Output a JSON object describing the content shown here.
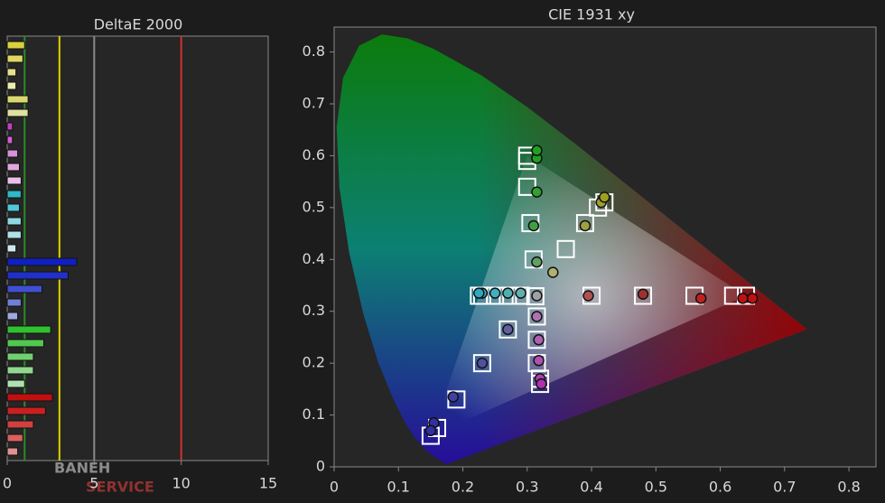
{
  "chart_data": [
    {
      "type": "hbar",
      "title": "DeltaE 2000",
      "categories": [
        null,
        null,
        null,
        null,
        null,
        null,
        null,
        null,
        null,
        null,
        null,
        null,
        null,
        null,
        null,
        null,
        null,
        null,
        null,
        null,
        null,
        null,
        null,
        null,
        null,
        null,
        null,
        null,
        null,
        null,
        null
      ],
      "values": [
        1.0,
        0.9,
        0.5,
        0.5,
        1.2,
        1.2,
        0.3,
        0.3,
        0.6,
        0.7,
        0.8,
        0.8,
        0.7,
        0.8,
        0.8,
        0.5,
        4.0,
        3.5,
        2.0,
        0.8,
        0.6,
        2.5,
        2.1,
        1.5,
        1.5,
        1.0,
        2.6,
        2.2,
        1.5,
        0.9,
        0.6
      ],
      "colors": [
        "#d8d040",
        "#e0d860",
        "#e8e090",
        "#ecebb0",
        "#d8d870",
        "#e0e0a0",
        "#c040c0",
        "#d060d0",
        "#d890d8",
        "#e0a8e0",
        "#e8c0e8",
        "#30b8c8",
        "#50c8d8",
        "#90d8e0",
        "#b0e0e8",
        "#d0e8f0",
        "#1020c0",
        "#2030c8",
        "#4050d0",
        "#7080d8",
        "#a0a8e0",
        "#30c030",
        "#50c850",
        "#70d070",
        "#90d890",
        "#b0e0b0",
        "#c01010",
        "#c82020",
        "#d04040",
        "#d86060",
        "#e09090"
      ],
      "xlim": [
        0,
        15
      ],
      "xticks": [
        0,
        5,
        10,
        15
      ],
      "reference_lines": [
        {
          "value": 1,
          "color": "#2a8a2a"
        },
        {
          "value": 3,
          "color": "#e0d000"
        },
        {
          "value": 5,
          "color": "#888888"
        },
        {
          "value": 10,
          "color": "#d03030"
        }
      ]
    },
    {
      "type": "chromaticity",
      "title": "CIE 1931 xy",
      "xlim": [
        0,
        0.842
      ],
      "ylim": [
        0,
        0.848
      ],
      "xticks": [
        0,
        0.1,
        0.2,
        0.3,
        0.4,
        0.5,
        0.6,
        0.7,
        0.8
      ],
      "yticks": [
        0,
        0.1,
        0.2,
        0.3,
        0.4,
        0.5,
        0.6,
        0.7,
        0.8
      ],
      "targets": {
        "x": [
          0.3127,
          0.4,
          0.48,
          0.56,
          0.62,
          0.64,
          0.31,
          0.305,
          0.3,
          0.3,
          0.3,
          0.27,
          0.23,
          0.19,
          0.16,
          0.15,
          0.29,
          0.27,
          0.25,
          0.23,
          0.225,
          0.315,
          0.315,
          0.315,
          0.32,
          0.32,
          0.36,
          0.39,
          0.41,
          0.42
        ],
        "y": [
          0.329,
          0.33,
          0.33,
          0.33,
          0.33,
          0.33,
          0.4,
          0.47,
          0.54,
          0.59,
          0.6,
          0.265,
          0.2,
          0.13,
          0.075,
          0.06,
          0.33,
          0.33,
          0.33,
          0.33,
          0.33,
          0.29,
          0.245,
          0.2,
          0.17,
          0.16,
          0.42,
          0.47,
          0.5,
          0.51
        ]
      },
      "measurements": {
        "x": [
          0.315,
          0.395,
          0.48,
          0.57,
          0.635,
          0.65,
          0.315,
          0.31,
          0.315,
          0.315,
          0.315,
          0.27,
          0.23,
          0.185,
          0.155,
          0.15,
          0.29,
          0.27,
          0.25,
          0.23,
          0.225,
          0.315,
          0.318,
          0.318,
          0.32,
          0.322,
          0.34,
          0.39,
          0.415,
          0.42
        ],
        "y": [
          0.33,
          0.33,
          0.333,
          0.325,
          0.325,
          0.325,
          0.395,
          0.465,
          0.53,
          0.595,
          0.61,
          0.265,
          0.2,
          0.135,
          0.085,
          0.07,
          0.335,
          0.335,
          0.335,
          0.335,
          0.335,
          0.29,
          0.245,
          0.205,
          0.17,
          0.16,
          0.375,
          0.465,
          0.51,
          0.52
        ],
        "colors": [
          "#a0a0a0",
          "#b05050",
          "#a03030",
          "#c02020",
          "#c01010",
          "#c01010",
          "#60a060",
          "#40a040",
          "#30a030",
          "#20a020",
          "#20a020",
          "#6060a0",
          "#5050a0",
          "#4040a0",
          "#3030a0",
          "#3030a0",
          "#60b0b0",
          "#50b0b0",
          "#40b0c0",
          "#30a8c0",
          "#30a8c0",
          "#b070b0",
          "#b060b0",
          "#b050b0",
          "#b040b0",
          "#b030b0",
          "#b0b070",
          "#a0a040",
          "#a0a030",
          "#a0a020"
        ]
      }
    }
  ],
  "watermark": {
    "name": "BANEH",
    "sub": "SERVICE"
  }
}
